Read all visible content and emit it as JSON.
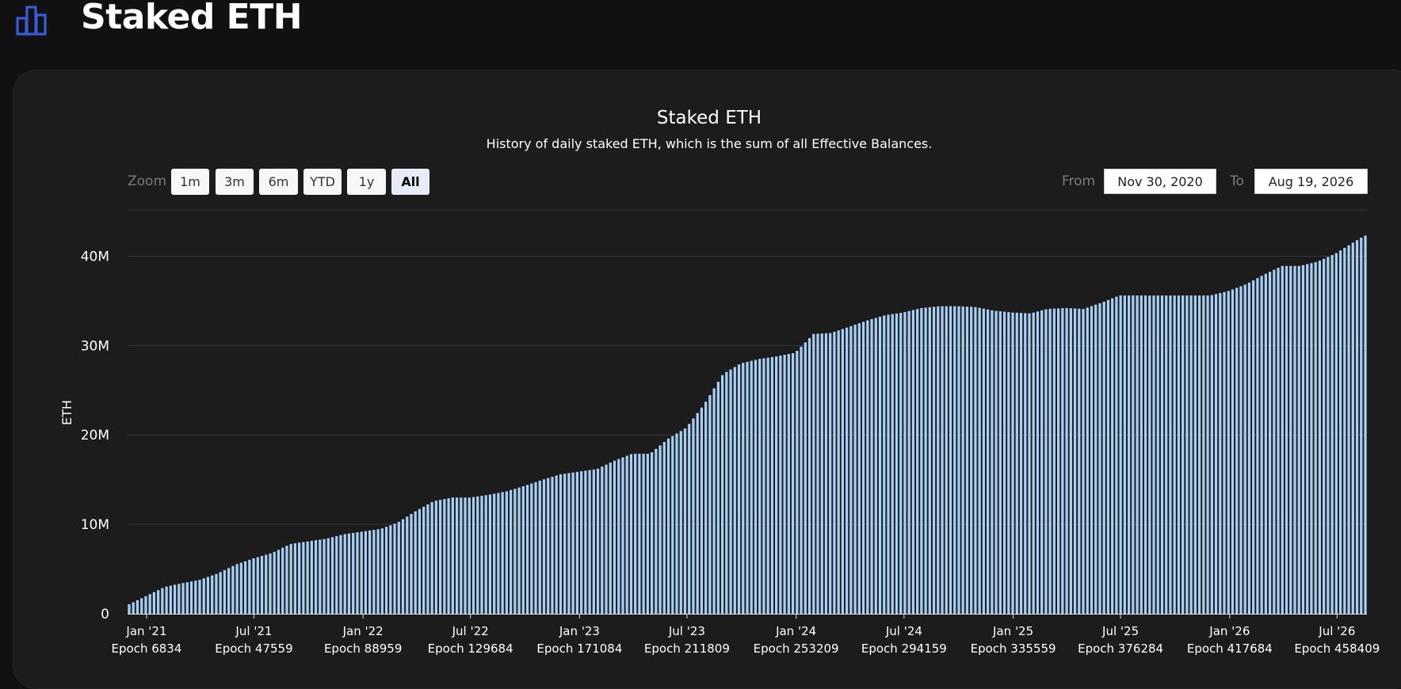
{
  "header": {
    "title": "Staked ETH",
    "icon": "bar-chart-icon"
  },
  "controls": {
    "zoom_label": "Zoom",
    "zoom_buttons": [
      "1m",
      "3m",
      "6m",
      "YTD",
      "1y",
      "All"
    ],
    "active_zoom": "All",
    "from_label": "From",
    "from_value": "Nov 30, 2020",
    "to_label": "To",
    "to_value": "Aug 19, 2026"
  },
  "chart_data": {
    "type": "bar",
    "title": "Staked ETH",
    "subtitle": "History of daily staked ETH, which is the sum of all Effective Balances.",
    "ylabel": "ETH",
    "ylim": [
      0,
      45000000
    ],
    "yticks": [
      0,
      10000000,
      20000000,
      30000000,
      40000000
    ],
    "ytick_labels": [
      "0",
      "10M",
      "20M",
      "30M",
      "40M"
    ],
    "xlim": [
      "2020-11-30",
      "2026-08-19"
    ],
    "xticks": [
      {
        "date": "2021-01-01",
        "label": "Jan '21",
        "epoch": "Epoch 6834"
      },
      {
        "date": "2021-07-01",
        "label": "Jul '21",
        "epoch": "Epoch 47559"
      },
      {
        "date": "2022-01-01",
        "label": "Jan '22",
        "epoch": "Epoch 88959"
      },
      {
        "date": "2022-07-01",
        "label": "Jul '22",
        "epoch": "Epoch 129684"
      },
      {
        "date": "2023-01-01",
        "label": "Jan '23",
        "epoch": "Epoch 171084"
      },
      {
        "date": "2023-07-01",
        "label": "Jul '23",
        "epoch": "Epoch 211809"
      },
      {
        "date": "2024-01-01",
        "label": "Jan '24",
        "epoch": "Epoch 253209"
      },
      {
        "date": "2024-07-01",
        "label": "Jul '24",
        "epoch": "Epoch 294159"
      },
      {
        "date": "2025-01-01",
        "label": "Jan '25",
        "epoch": "Epoch 335559"
      },
      {
        "date": "2025-07-01",
        "label": "Jul '25",
        "epoch": "Epoch 376284"
      },
      {
        "date": "2026-01-01",
        "label": "Jan '26",
        "epoch": "Epoch 417684"
      },
      {
        "date": "2026-07-01",
        "label": "Jul '26",
        "epoch": "Epoch 458409"
      }
    ],
    "bar_color": "#a8cff5",
    "grid": true,
    "bars": [
      {
        "date": "2020-12-01",
        "value": 1.0
      },
      {
        "date": "2021-01-01",
        "value": 2.0
      },
      {
        "date": "2021-02-01",
        "value": 3.0
      },
      {
        "date": "2021-03-01",
        "value": 3.4
      },
      {
        "date": "2021-04-01",
        "value": 3.8
      },
      {
        "date": "2021-05-01",
        "value": 4.5
      },
      {
        "date": "2021-06-01",
        "value": 5.5
      },
      {
        "date": "2021-07-01",
        "value": 6.2
      },
      {
        "date": "2021-08-01",
        "value": 6.8
      },
      {
        "date": "2021-09-01",
        "value": 7.8
      },
      {
        "date": "2021-10-01",
        "value": 8.1
      },
      {
        "date": "2021-11-01",
        "value": 8.4
      },
      {
        "date": "2021-12-01",
        "value": 8.9
      },
      {
        "date": "2022-01-01",
        "value": 9.2
      },
      {
        "date": "2022-02-01",
        "value": 9.5
      },
      {
        "date": "2022-03-01",
        "value": 10.2
      },
      {
        "date": "2022-04-01",
        "value": 11.5
      },
      {
        "date": "2022-05-01",
        "value": 12.6
      },
      {
        "date": "2022-06-01",
        "value": 13.0
      },
      {
        "date": "2022-07-01",
        "value": 13.0
      },
      {
        "date": "2022-08-01",
        "value": 13.3
      },
      {
        "date": "2022-09-01",
        "value": 13.7
      },
      {
        "date": "2022-10-01",
        "value": 14.3
      },
      {
        "date": "2022-11-01",
        "value": 15.0
      },
      {
        "date": "2022-12-01",
        "value": 15.6
      },
      {
        "date": "2023-01-01",
        "value": 15.9
      },
      {
        "date": "2023-02-01",
        "value": 16.2
      },
      {
        "date": "2023-03-01",
        "value": 17.1
      },
      {
        "date": "2023-04-01",
        "value": 17.9
      },
      {
        "date": "2023-05-01",
        "value": 17.9
      },
      {
        "date": "2023-06-01",
        "value": 19.6
      },
      {
        "date": "2023-07-01",
        "value": 20.8
      },
      {
        "date": "2023-08-01",
        "value": 23.5
      },
      {
        "date": "2023-09-01",
        "value": 26.8
      },
      {
        "date": "2023-10-01",
        "value": 28.0
      },
      {
        "date": "2023-11-01",
        "value": 28.5
      },
      {
        "date": "2023-12-01",
        "value": 28.8
      },
      {
        "date": "2024-01-01",
        "value": 29.2
      },
      {
        "date": "2024-02-01",
        "value": 31.3
      },
      {
        "date": "2024-03-01",
        "value": 31.4
      },
      {
        "date": "2024-04-01",
        "value": 32.1
      },
      {
        "date": "2024-05-01",
        "value": 32.8
      },
      {
        "date": "2024-06-01",
        "value": 33.4
      },
      {
        "date": "2024-07-01",
        "value": 33.7
      },
      {
        "date": "2024-08-01",
        "value": 34.2
      },
      {
        "date": "2024-09-01",
        "value": 34.4
      },
      {
        "date": "2024-10-01",
        "value": 34.4
      },
      {
        "date": "2024-11-01",
        "value": 34.3
      },
      {
        "date": "2024-12-01",
        "value": 33.9
      },
      {
        "date": "2025-01-01",
        "value": 33.7
      },
      {
        "date": "2025-02-01",
        "value": 33.6
      },
      {
        "date": "2025-03-01",
        "value": 34.1
      },
      {
        "date": "2025-04-01",
        "value": 34.2
      },
      {
        "date": "2025-05-01",
        "value": 34.1
      },
      {
        "date": "2025-06-01",
        "value": 34.8
      },
      {
        "date": "2025-07-01",
        "value": 35.6
      },
      {
        "date": "2025-08-01",
        "value": 35.6
      },
      {
        "date": "2025-09-01",
        "value": 35.6
      },
      {
        "date": "2025-10-01",
        "value": 35.6
      },
      {
        "date": "2025-11-01",
        "value": 35.6
      },
      {
        "date": "2025-12-01",
        "value": 35.6
      },
      {
        "date": "2026-01-01",
        "value": 36.1
      },
      {
        "date": "2026-02-01",
        "value": 36.9
      },
      {
        "date": "2026-03-01",
        "value": 37.9
      },
      {
        "date": "2026-04-01",
        "value": 38.9
      },
      {
        "date": "2026-05-01",
        "value": 38.9
      },
      {
        "date": "2026-06-01",
        "value": 39.4
      },
      {
        "date": "2026-07-01",
        "value": 40.3
      },
      {
        "date": "2026-08-01",
        "value": 41.6
      },
      {
        "date": "2026-08-19",
        "value": 42.3
      }
    ],
    "value_unit": "million ETH"
  }
}
